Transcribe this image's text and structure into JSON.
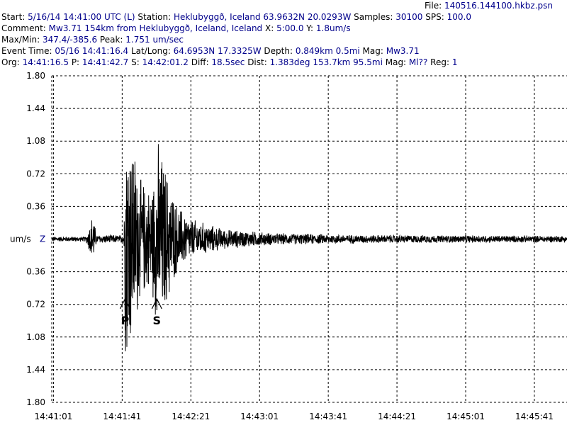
{
  "header": {
    "file_label": "File:",
    "file_value": "140516.144100.hkbz.psn",
    "line1": [
      {
        "t": "Start: ",
        "c": "k"
      },
      {
        "t": "5/16/14 14:41:00 UTC (L)",
        "c": "v"
      },
      {
        "t": " Station: ",
        "c": "k"
      },
      {
        "t": "Heklubyggð, Iceland 63.9632N 20.0293W",
        "c": "v"
      },
      {
        "t": " Samples: ",
        "c": "k"
      },
      {
        "t": "30100",
        "c": "v"
      },
      {
        "t": "  SPS: ",
        "c": "k"
      },
      {
        "t": "100.0",
        "c": "v"
      }
    ],
    "line2": [
      {
        "t": "Comment: ",
        "c": "k"
      },
      {
        "t": "Mw3.71 154km from Heklubyggð, Iceland, Iceland",
        "c": "v"
      },
      {
        "t": "    X: ",
        "c": "k"
      },
      {
        "t": "5:00.0",
        "c": "v"
      },
      {
        "t": " Y: ",
        "c": "k"
      },
      {
        "t": "1.8um/s",
        "c": "v"
      }
    ],
    "line3": [
      {
        "t": "Max/Min: ",
        "c": "k"
      },
      {
        "t": "347.4/-385.6",
        "c": "v"
      },
      {
        "t": "  Peak: ",
        "c": "k"
      },
      {
        "t": "1.751 um/sec",
        "c": "v"
      }
    ],
    "line4": [
      {
        "t": "Event Time: ",
        "c": "k"
      },
      {
        "t": "05/16 14:41:16.4",
        "c": "v"
      },
      {
        "t": " Lat/Long: ",
        "c": "k"
      },
      {
        "t": "64.6953N 17.3325W",
        "c": "v"
      },
      {
        "t": " Depth: ",
        "c": "k"
      },
      {
        "t": "0.849km 0.5mi",
        "c": "v"
      },
      {
        "t": " Mag: ",
        "c": "k"
      },
      {
        "t": "Mw3.71",
        "c": "v"
      }
    ],
    "line5": [
      {
        "t": "Org: ",
        "c": "k"
      },
      {
        "t": "14:41:16.5",
        "c": "v"
      },
      {
        "t": " P: ",
        "c": "k"
      },
      {
        "t": "14:41:42.7",
        "c": "v"
      },
      {
        "t": " S: ",
        "c": "k"
      },
      {
        "t": "14:42:01.2",
        "c": "v"
      },
      {
        "t": " Diff: ",
        "c": "k"
      },
      {
        "t": "18.5sec",
        "c": "v"
      },
      {
        "t": " Dist: ",
        "c": "k"
      },
      {
        "t": "1.383deg 153.7km 95.5mi",
        "c": "v"
      },
      {
        "t": "  Mag: ",
        "c": "k"
      },
      {
        "t": "Ml??",
        "c": "v"
      },
      {
        "t": " Reg: ",
        "c": "k"
      },
      {
        "t": "1",
        "c": "v"
      }
    ]
  },
  "chart_data": {
    "type": "line",
    "title": "",
    "ylabel": "um/s",
    "channel": "Z",
    "xlabel": "",
    "grid": true,
    "x_ticks": [
      "14:41:01",
      "14:41:41",
      "14:42:21",
      "14:43:01",
      "14:43:41",
      "14:44:21",
      "14:45:01",
      "14:45:41"
    ],
    "y_ticks": [
      "1.80",
      "1.44",
      "1.08",
      "0.72",
      "0.36",
      "0.36",
      "0.72",
      "1.08",
      "1.44",
      "1.80"
    ],
    "ylim": [
      -1.8,
      1.8
    ],
    "xlim": [
      "14:41:00",
      "14:46:00"
    ],
    "phase_markers": [
      {
        "label": "P",
        "time": "14:41:42.7"
      },
      {
        "label": "S",
        "time": "14:42:01.2"
      }
    ],
    "series": [
      {
        "color": "#000000",
        "envelope": [
          {
            "t": "14:41:00",
            "amp": 0.03
          },
          {
            "t": "14:41:20",
            "amp": 0.03
          },
          {
            "t": "14:41:24",
            "amp": 0.32
          },
          {
            "t": "14:41:26",
            "amp": 0.05
          },
          {
            "t": "14:41:42",
            "amp": 0.05
          },
          {
            "t": "14:41:43",
            "amp": 1.6
          },
          {
            "t": "14:41:46",
            "amp": 1.35
          },
          {
            "t": "14:41:52",
            "amp": 0.7
          },
          {
            "t": "14:41:58",
            "amp": 0.6
          },
          {
            "t": "14:42:02",
            "amp": 1.15
          },
          {
            "t": "14:42:06",
            "amp": 0.9
          },
          {
            "t": "14:42:12",
            "amp": 0.45
          },
          {
            "t": "14:42:20",
            "amp": 0.25
          },
          {
            "t": "14:42:40",
            "amp": 0.12
          },
          {
            "t": "14:43:10",
            "amp": 0.07
          },
          {
            "t": "14:44:00",
            "amp": 0.05
          },
          {
            "t": "14:46:00",
            "amp": 0.04
          }
        ]
      }
    ]
  }
}
